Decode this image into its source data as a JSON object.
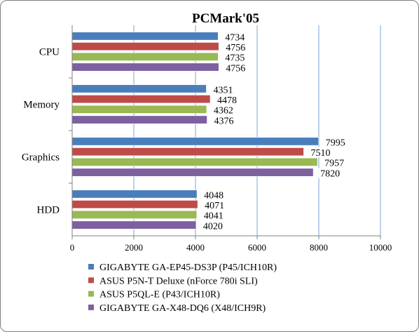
{
  "chart_data": {
    "type": "bar",
    "orientation": "horizontal",
    "title": "PCMark'05",
    "categories": [
      "CPU",
      "Memory",
      "Graphics",
      "HDD"
    ],
    "series": [
      {
        "name": "GIGABYTE GA-EP45-DS3P (P45/ICH10R)",
        "color": "#4a7ebb",
        "values": [
          4734,
          4351,
          7995,
          4048
        ]
      },
      {
        "name": "ASUS P5N-T Deluxe (nForce 780i SLI)",
        "color": "#be4b48",
        "values": [
          4756,
          4478,
          7510,
          4071
        ]
      },
      {
        "name": "ASUS P5QL-E (P43/ICH10R)",
        "color": "#98b954",
        "values": [
          4735,
          4362,
          7957,
          4041
        ]
      },
      {
        "name": "GIGABYTE GA-X48-DQ6 (X48/ICH9R)",
        "color": "#7d60a0",
        "values": [
          4756,
          4376,
          7820,
          4020
        ]
      }
    ],
    "xlim": [
      0,
      10000
    ],
    "xticks": [
      0,
      2000,
      4000,
      6000,
      8000,
      10000
    ],
    "grid": true,
    "legend_position": "bottom"
  }
}
